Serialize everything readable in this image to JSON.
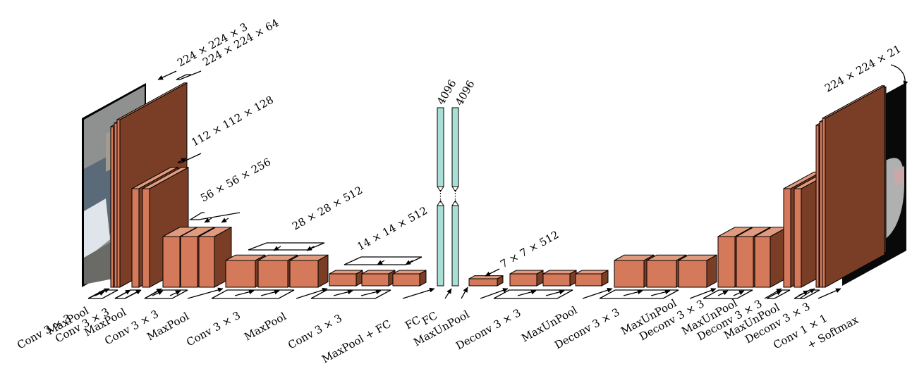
{
  "colors": {
    "block_front": "#d4795a",
    "block_top": "#e09a7d",
    "block_side": "#7a3e27",
    "fc_bar": "#a9dfd6",
    "photo_bg": "#8c8f8e",
    "seg_bg": "#090909",
    "seg_object": "#b0b0b0",
    "seg_class": "#2fa12f"
  },
  "icons": {
    "input_image": "street-photo-image",
    "output_image": "segmentation-map-image"
  },
  "dims": {
    "input": "224 × 224 × 3",
    "conv1": "224 × 224 × 64",
    "conv2": "112 × 112 × 128",
    "conv3": "56 × 56 × 256",
    "conv4": "28 × 28 × 512",
    "conv5": "14 × 14 × 512",
    "fc1": "4096",
    "fc2": "4096",
    "pool5_up": "7 × 7 × 512",
    "output": "224 × 224 × 21"
  },
  "ops": [
    "Conv 3 × 3",
    "MaxPool",
    "Conv 3 × 3",
    "MaxPool",
    "Conv 3 × 3",
    "MaxPool",
    "Conv 3 × 3",
    "MaxPool",
    "Conv 3 × 3",
    "MaxPool + FC",
    "FC",
    "FC",
    "MaxUnPool",
    "Deconv 3 × 3",
    "MaxUnPool",
    "Deconv 3 × 3",
    "MaxUnPool",
    "Deconv 3 × 3",
    "MaxUnPool",
    "Deconv 3 × 3",
    "MaxUnPool",
    "Deconv 3 × 3",
    "Conv 1 × 1",
    "+ Softmax"
  ]
}
